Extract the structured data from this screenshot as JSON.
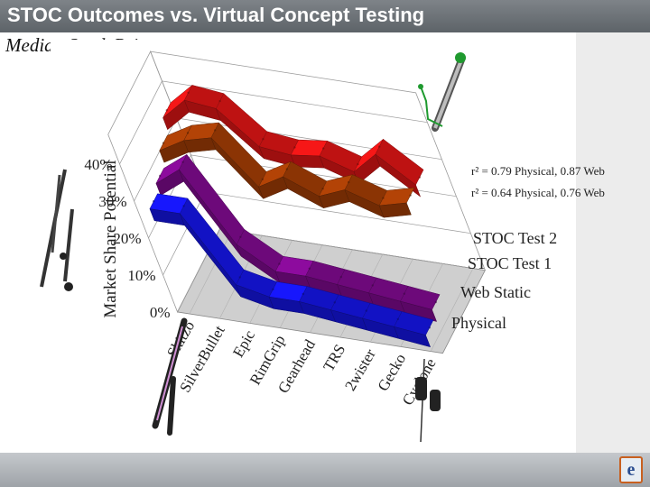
{
  "page": {
    "title": "STOC Outcomes vs. Virtual Concept Testing",
    "subtitle": "Median Stock Prices",
    "footer_logo_letter": "e"
  },
  "chart_data": {
    "type": "line",
    "style": "3d ribbon",
    "title": "",
    "ylabel": "Market Share Potential",
    "ylim": [
      0,
      40
    ],
    "yticks": [
      "0%",
      "10%",
      "20%",
      "30%",
      "40%"
    ],
    "categories": [
      "Skitzo",
      "SilverBullet",
      "Epic",
      "RimGrip",
      "Gearhead",
      "TRS",
      "2wister",
      "Gecko",
      "Cyclone"
    ],
    "series": [
      {
        "name": "Physical",
        "color": "#1515e6",
        "values": [
          28,
          28,
          10,
          8,
          8,
          7,
          6,
          5,
          4
        ]
      },
      {
        "name": "Web Static",
        "color": "#800a90",
        "values": [
          30,
          35,
          16,
          10,
          10,
          9,
          8,
          7,
          6
        ]
      },
      {
        "name": "STOC Test 1",
        "color": "#a33d05",
        "values": [
          34,
          38,
          40,
          28,
          32,
          28,
          31,
          28,
          30
        ]
      },
      {
        "name": "STOC Test 2",
        "color": "#e01515",
        "values": [
          38,
          44,
          43,
          34,
          33,
          34,
          31,
          37,
          30
        ]
      }
    ],
    "annotations": [
      "r² = 0.79 Physical, 0.87 Web",
      "r² = 0.64 Physical, 0.76 Web"
    ],
    "grid": true,
    "legend": "series labels on right edge"
  }
}
